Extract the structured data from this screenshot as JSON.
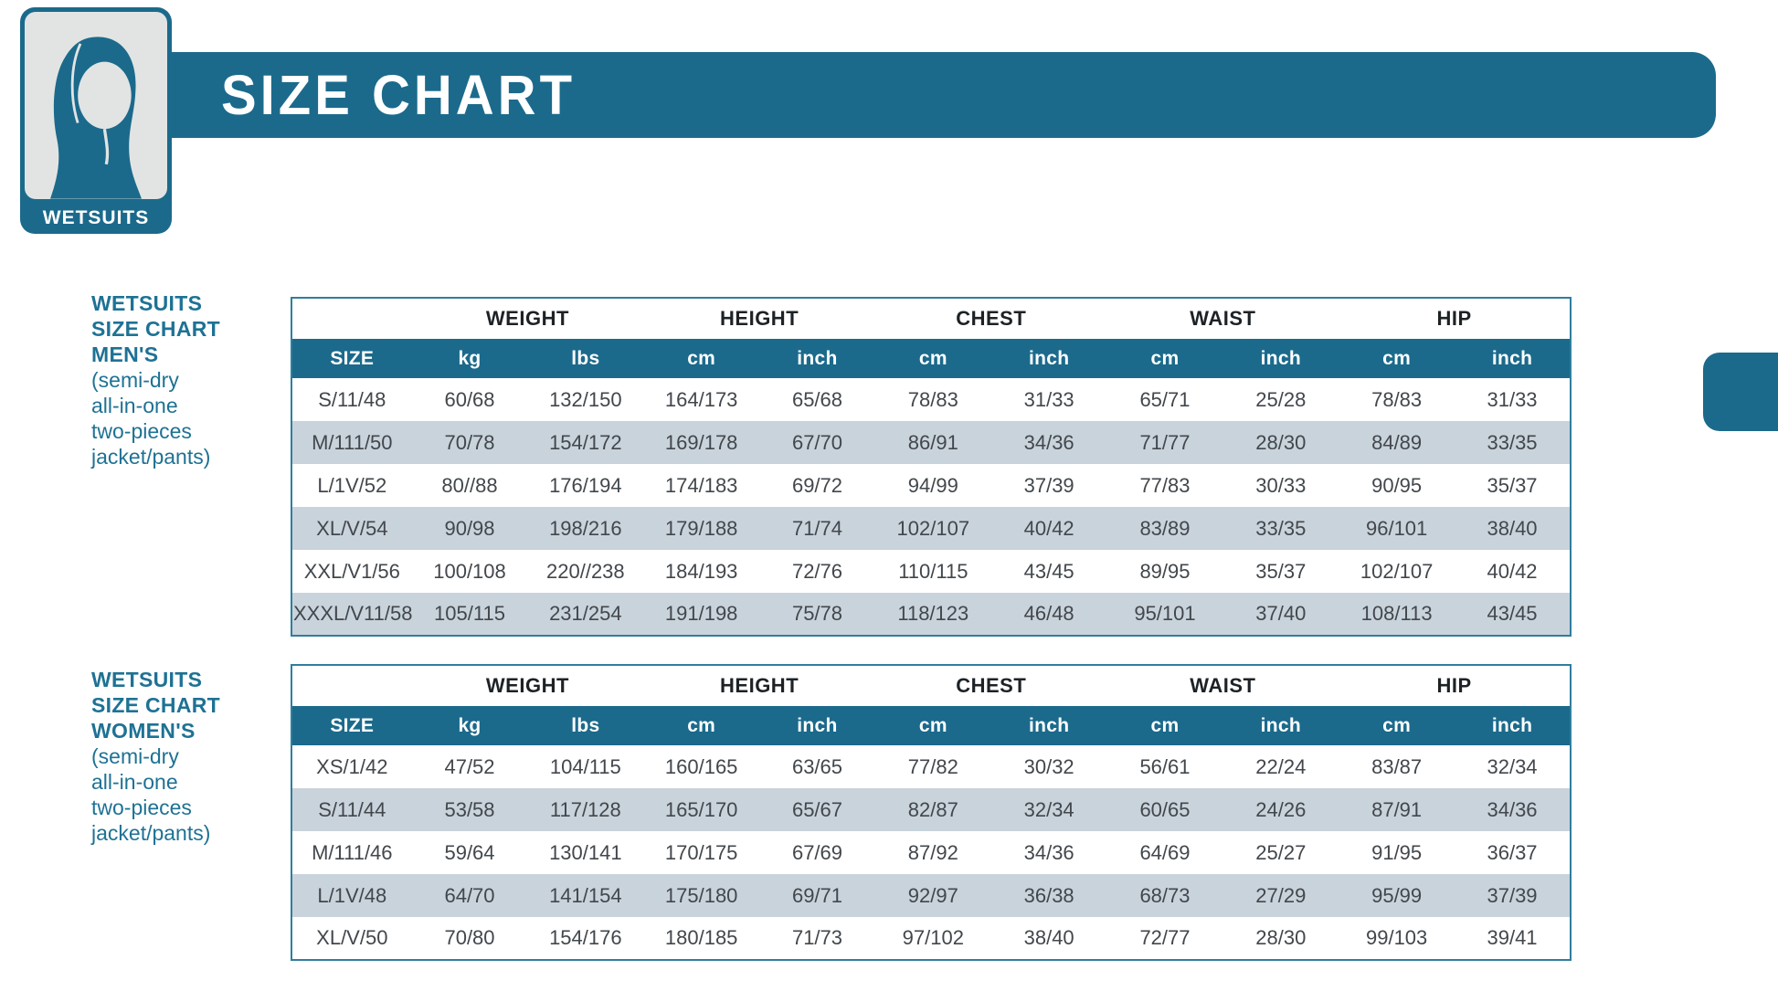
{
  "colors": {
    "teal": "#1b6a8c",
    "stripe": "#c9d3db"
  },
  "logo": {
    "label": "WETSUITS"
  },
  "banner": {
    "title": "SIZE CHART"
  },
  "table": {
    "group_headers": [
      "WEIGHT",
      "HEIGHT",
      "CHEST",
      "WAIST",
      "HIP"
    ],
    "unit_headers": [
      "SIZE",
      "kg",
      "lbs",
      "cm",
      "inch",
      "cm",
      "inch",
      "cm",
      "inch",
      "cm",
      "inch"
    ]
  },
  "mens": {
    "title_lines": [
      "WETSUITS",
      "SIZE CHART",
      "MEN'S"
    ],
    "subtitle_lines": [
      "(semi-dry",
      "all-in-one",
      "two-pieces",
      "jacket/pants)"
    ],
    "rows": [
      [
        "S/11/48",
        "60/68",
        "132/150",
        "164/173",
        "65/68",
        "78/83",
        "31/33",
        "65/71",
        "25/28",
        "78/83",
        "31/33"
      ],
      [
        "M/111/50",
        "70/78",
        "154/172",
        "169/178",
        "67/70",
        "86/91",
        "34/36",
        "71/77",
        "28/30",
        "84/89",
        "33/35"
      ],
      [
        "L/1V/52",
        "80//88",
        "176/194",
        "174/183",
        "69/72",
        "94/99",
        "37/39",
        "77/83",
        "30/33",
        "90/95",
        "35/37"
      ],
      [
        "XL/V/54",
        "90/98",
        "198/216",
        "179/188",
        "71/74",
        "102/107",
        "40/42",
        "83/89",
        "33/35",
        "96/101",
        "38/40"
      ],
      [
        "XXL/V1/56",
        "100/108",
        "220//238",
        "184/193",
        "72/76",
        "110/115",
        "43/45",
        "89/95",
        "35/37",
        "102/107",
        "40/42"
      ],
      [
        "XXXL/V11/58",
        "105/115",
        "231/254",
        "191/198",
        "75/78",
        "118/123",
        "46/48",
        "95/101",
        "37/40",
        "108/113",
        "43/45"
      ]
    ]
  },
  "womens": {
    "title_lines": [
      "WETSUITS",
      "SIZE CHART",
      "WOMEN'S"
    ],
    "subtitle_lines": [
      "(semi-dry",
      "all-in-one",
      "two-pieces",
      "jacket/pants)"
    ],
    "rows": [
      [
        "XS/1/42",
        "47/52",
        "104/115",
        "160/165",
        "63/65",
        "77/82",
        "30/32",
        "56/61",
        "22/24",
        "83/87",
        "32/34"
      ],
      [
        "S/11/44",
        "53/58",
        "117/128",
        "165/170",
        "65/67",
        "82/87",
        "32/34",
        "60/65",
        "24/26",
        "87/91",
        "34/36"
      ],
      [
        "M/111/46",
        "59/64",
        "130/141",
        "170/175",
        "67/69",
        "87/92",
        "34/36",
        "64/69",
        "25/27",
        "91/95",
        "36/37"
      ],
      [
        "L/1V/48",
        "64/70",
        "141/154",
        "175/180",
        "69/71",
        "92/97",
        "36/38",
        "68/73",
        "27/29",
        "95/99",
        "37/39"
      ],
      [
        "XL/V/50",
        "70/80",
        "154/176",
        "180/185",
        "71/73",
        "97/102",
        "38/40",
        "72/77",
        "28/30",
        "99/103",
        "39/41"
      ]
    ]
  }
}
